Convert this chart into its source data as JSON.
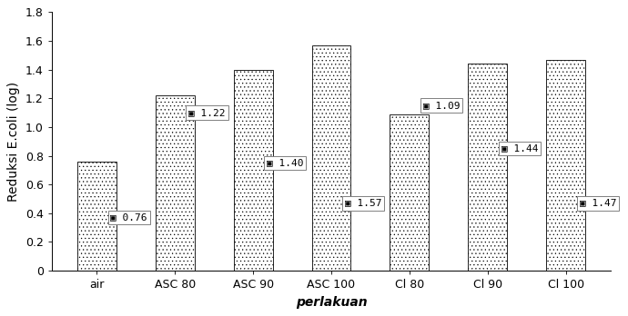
{
  "categories": [
    "air",
    "ASC 80",
    "ASC 90",
    "ASC 100",
    "Cl 80",
    "Cl 90",
    "Cl 100"
  ],
  "values": [
    0.76,
    1.22,
    1.4,
    1.57,
    1.09,
    1.44,
    1.47
  ],
  "label_y_positions": [
    0.37,
    1.1,
    0.75,
    0.47,
    1.15,
    0.85,
    0.47
  ],
  "hatch_pattern": ".",
  "ylabel": "Reduksi E.coli (log)",
  "xlabel": "perlakuan",
  "ylim": [
    0,
    1.8
  ],
  "yticks": [
    0,
    0.2,
    0.4,
    0.6,
    0.8,
    1.0,
    1.2,
    1.4,
    1.6,
    1.8
  ],
  "background_color": "#ffffff",
  "label_fontsize": 8,
  "axis_label_fontsize": 10,
  "bar_width": 0.5
}
